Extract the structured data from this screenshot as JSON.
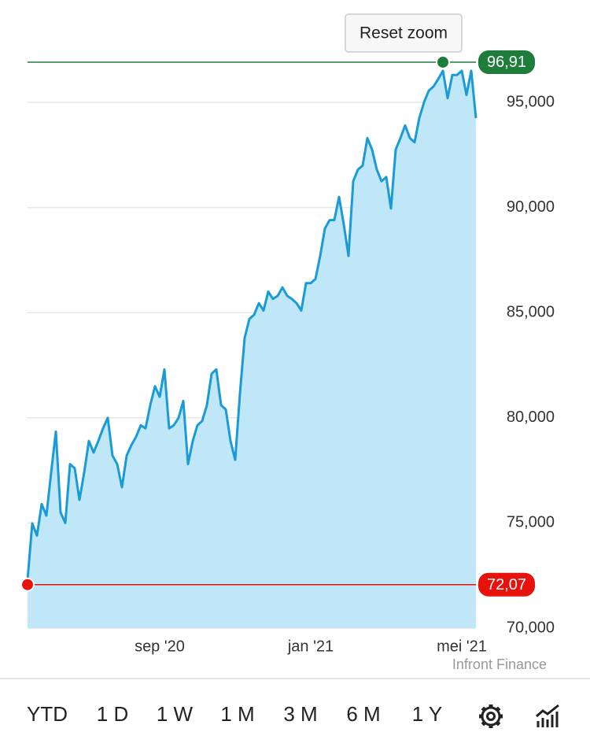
{
  "chart_data": {
    "type": "area",
    "categories": [
      null,
      null,
      null,
      null,
      null,
      null,
      null,
      null,
      null,
      null,
      null,
      null,
      null,
      null,
      null,
      null,
      null,
      null,
      null,
      null,
      null,
      null,
      null,
      null,
      null,
      null,
      null,
      null,
      "sep '20",
      null,
      null,
      null,
      null,
      null,
      null,
      null,
      null,
      null,
      null,
      null,
      null,
      null,
      null,
      null,
      null,
      null,
      null,
      null,
      null,
      null,
      null,
      null,
      null,
      null,
      null,
      null,
      null,
      null,
      null,
      null,
      "jan '21",
      null,
      null,
      null,
      null,
      null,
      null,
      null,
      null,
      null,
      null,
      null,
      null,
      null,
      null,
      null,
      null,
      null,
      null,
      null,
      null,
      null,
      null,
      null,
      null,
      null,
      null,
      null,
      null,
      null,
      null,
      null,
      "mei '21",
      null,
      null,
      null
    ],
    "values": [
      72.3,
      74.98,
      74.4,
      75.9,
      75.35,
      77.4,
      79.35,
      75.5,
      75.0,
      77.8,
      77.6,
      76.1,
      77.4,
      78.9,
      78.35,
      78.9,
      79.5,
      80.0,
      78.2,
      77.8,
      76.7,
      78.2,
      78.7,
      79.1,
      79.65,
      79.5,
      80.6,
      81.5,
      81.0,
      82.3,
      79.5,
      79.65,
      80.0,
      80.8,
      77.8,
      78.9,
      79.65,
      79.85,
      80.6,
      82.1,
      82.3,
      80.6,
      80.4,
      78.9,
      78.0,
      81.15,
      83.8,
      84.7,
      84.9,
      85.45,
      85.1,
      86.0,
      85.65,
      85.8,
      86.2,
      85.8,
      85.65,
      85.45,
      85.1,
      86.4,
      86.4,
      86.6,
      87.7,
      89.0,
      89.4,
      89.4,
      90.5,
      89.2,
      87.7,
      91.25,
      91.8,
      92.0,
      93.3,
      92.75,
      91.8,
      91.25,
      91.45,
      89.95,
      92.75,
      93.3,
      93.9,
      93.3,
      93.1,
      94.25,
      95.0,
      95.55,
      95.75,
      96.1,
      96.5,
      95.2,
      96.3,
      96.3,
      96.5,
      95.35,
      96.5,
      94.25
    ],
    "color": "#1a9bd7",
    "fill_color": "#c0e7f7",
    "ylim": [
      70,
      99
    ],
    "yticks": [
      {
        "value": 70,
        "label": "70,000"
      },
      {
        "value": 75,
        "label": "75,000"
      },
      {
        "value": 80,
        "label": "80,000"
      },
      {
        "value": 85,
        "label": "85,000"
      },
      {
        "value": 90,
        "label": "90,000"
      },
      {
        "value": 95,
        "label": "95,000"
      }
    ],
    "grid": true,
    "max_line": {
      "value": 96.91,
      "label": "96,91",
      "color": "#1e7d3a"
    },
    "min_line": {
      "value": 72.07,
      "label": "72,07",
      "color": "#e8120c"
    },
    "reset_button": "Reset zoom",
    "credit": "Infront Finance"
  },
  "range_tabs": [
    {
      "label": "YTD"
    },
    {
      "label": "1 D"
    },
    {
      "label": "1 W"
    },
    {
      "label": "1 M"
    },
    {
      "label": "3 M"
    },
    {
      "label": "6 M"
    },
    {
      "label": "1 Y",
      "active": true,
      "color": "#1a9bd7"
    }
  ]
}
